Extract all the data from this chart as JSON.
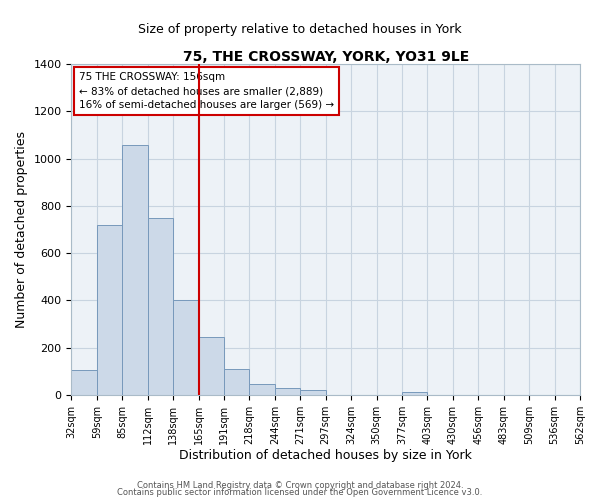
{
  "title": "75, THE CROSSWAY, YORK, YO31 9LE",
  "subtitle": "Size of property relative to detached houses in York",
  "xlabel": "Distribution of detached houses by size in York",
  "ylabel": "Number of detached properties",
  "bar_color": "#ccd9e8",
  "bar_edge_color": "#7799bb",
  "bin_labels": [
    "32sqm",
    "59sqm",
    "85sqm",
    "112sqm",
    "138sqm",
    "165sqm",
    "191sqm",
    "218sqm",
    "244sqm",
    "271sqm",
    "297sqm",
    "324sqm",
    "350sqm",
    "377sqm",
    "403sqm",
    "430sqm",
    "456sqm",
    "483sqm",
    "509sqm",
    "536sqm",
    "562sqm"
  ],
  "values": [
    107,
    720,
    1057,
    748,
    400,
    243,
    110,
    47,
    27,
    20,
    0,
    0,
    0,
    10,
    0,
    0,
    0,
    0,
    0,
    0
  ],
  "vline_pos": 5,
  "vline_color": "#cc0000",
  "annotation_line1": "75 THE CROSSWAY: 156sqm",
  "annotation_line2": "← 83% of detached houses are smaller (2,889)",
  "annotation_line3": "16% of semi-detached houses are larger (569) →",
  "ylim": [
    0,
    1400
  ],
  "yticks": [
    0,
    200,
    400,
    600,
    800,
    1000,
    1200,
    1400
  ],
  "footer1": "Contains HM Land Registry data © Crown copyright and database right 2024.",
  "footer2": "Contains public sector information licensed under the Open Government Licence v3.0.",
  "background_color": "#edf2f7",
  "grid_color": "#c8d4e0"
}
